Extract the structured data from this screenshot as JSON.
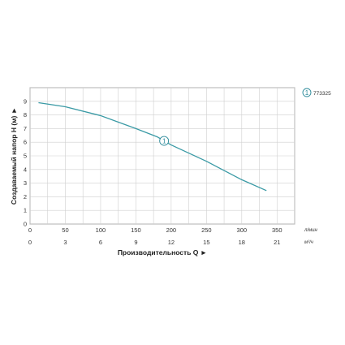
{
  "chart_data": {
    "type": "line",
    "ylabel": "Создаваемый напор H (м) ►",
    "xlabel": "Производительность Q ►",
    "x_primary_unit": "л/мин",
    "x_secondary_unit": "м³/ч",
    "x_primary_ticks": [
      "0",
      "50",
      "100",
      "150",
      "200",
      "250",
      "300",
      "350"
    ],
    "x_secondary_ticks": [
      "0",
      "3",
      "6",
      "9",
      "12",
      "15",
      "18",
      "21"
    ],
    "y_ticks": [
      "0",
      "1",
      "2",
      "3",
      "4",
      "5",
      "6",
      "7",
      "8",
      "9"
    ],
    "xlim": [
      0,
      375
    ],
    "ylim": [
      0,
      10
    ],
    "grid": true,
    "curve_color": "#3a9aa5",
    "series": [
      {
        "name": "773325",
        "marker_label": "1",
        "x": [
          12,
          50,
          100,
          150,
          180,
          200,
          250,
          300,
          335
        ],
        "y": [
          8.9,
          8.6,
          7.95,
          7.0,
          6.4,
          5.8,
          4.6,
          3.25,
          2.45
        ]
      }
    ],
    "legend": {
      "marker": "1",
      "label": "773325",
      "placement": "right"
    }
  }
}
